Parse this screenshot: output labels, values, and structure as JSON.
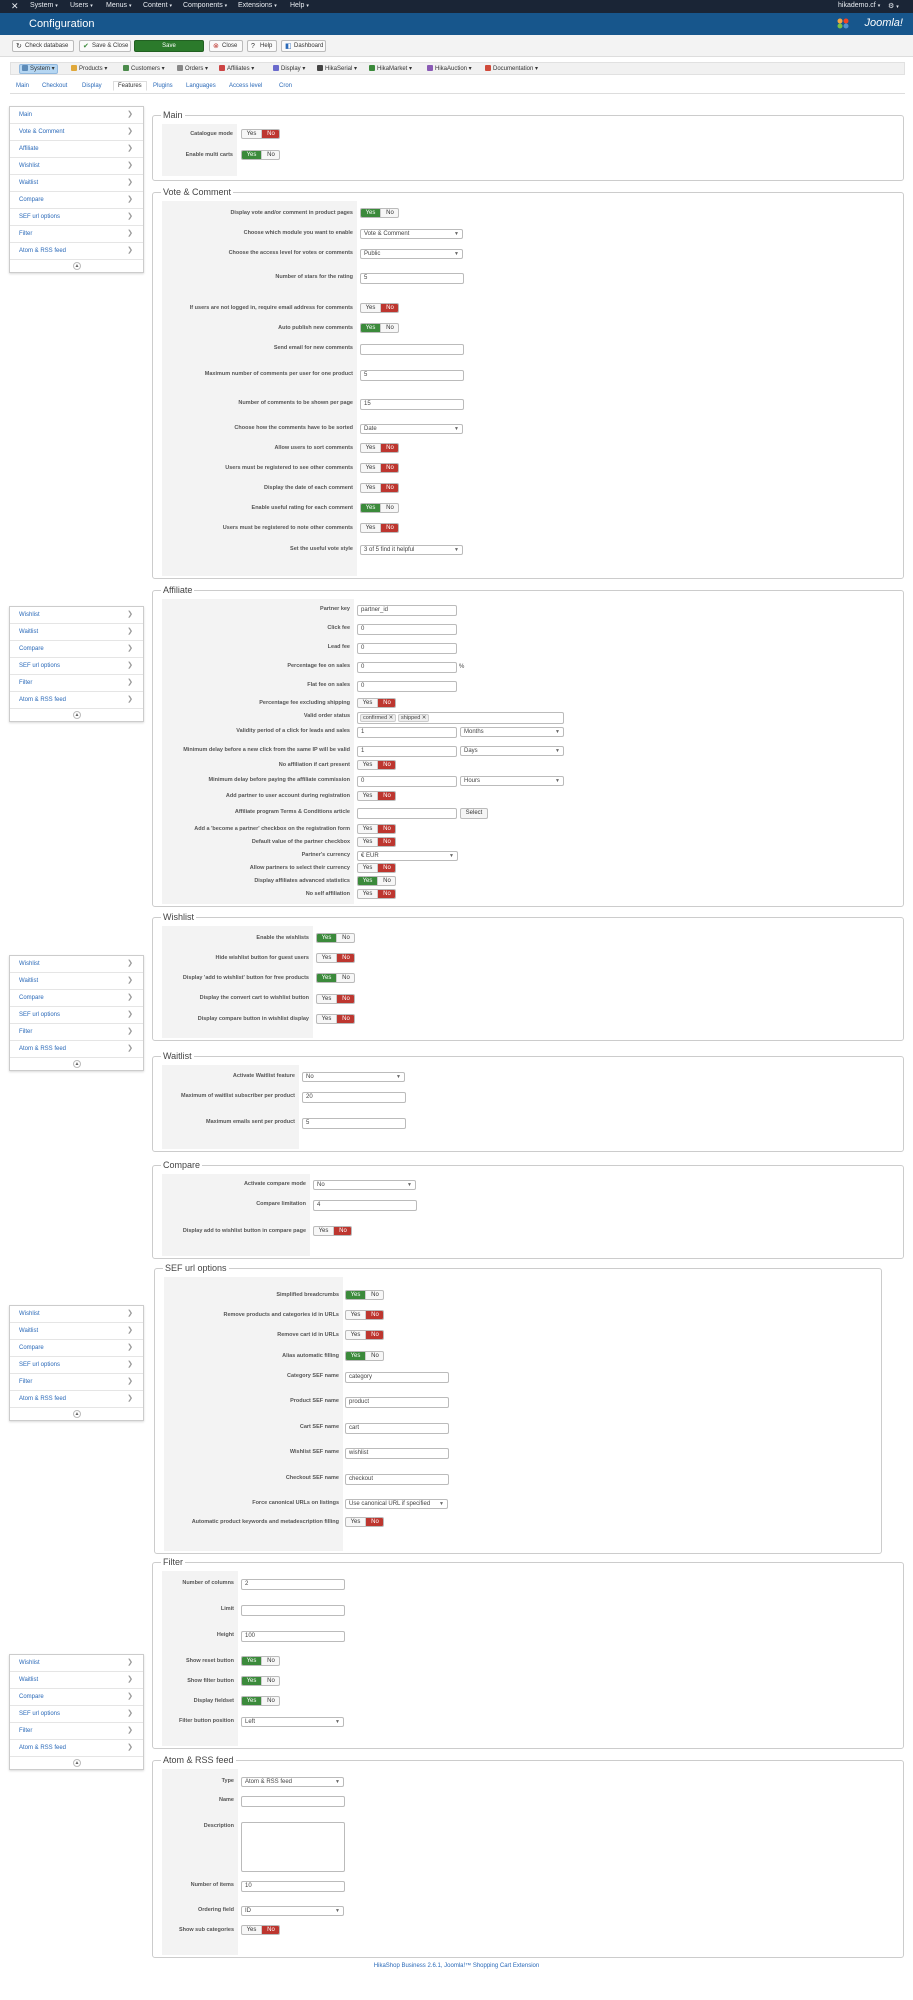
{
  "topbar": {
    "menus": [
      "System",
      "Users",
      "Menus",
      "Content",
      "Components",
      "Extensions",
      "Help"
    ],
    "user": "hikademo.cf"
  },
  "header": {
    "title": "Configuration",
    "brand": "Joomla!"
  },
  "toolbar": {
    "check_database": "Check database",
    "save_close": "Save & Close",
    "save": "Save",
    "close": "Close",
    "help": "Help",
    "dashboard": "Dashboard"
  },
  "hika_nav": [
    "System",
    "Products",
    "Customers",
    "Orders",
    "Affiliates",
    "Display",
    "HikaSerial",
    "HikaMarket",
    "HikaAuction",
    "Documentation"
  ],
  "tabs": [
    "Main",
    "Checkout",
    "Display",
    "Features",
    "Plugins",
    "Languages",
    "Access level",
    "Cron"
  ],
  "sidebar": {
    "items": [
      "Main",
      "Vote & Comment",
      "Affiliate",
      "Wishlist",
      "Waitlist",
      "Compare",
      "SEF url options",
      "Filter",
      "Atom & RSS feed"
    ]
  },
  "toggle": {
    "yes": "Yes",
    "no": "No"
  },
  "main": {
    "legend": "Main",
    "catalogue_mode": "Catalogue mode",
    "enable_multi_carts": "Enable multi carts"
  },
  "vote": {
    "legend": "Vote & Comment",
    "display_vote": "Display vote and/or comment in product pages",
    "module_label": "Choose which module you want to enable",
    "module_value": "Vote & Comment",
    "access_label": "Choose the access level for votes or comments",
    "access_value": "Public",
    "stars_label": "Number of stars for the rating",
    "stars_value": "5",
    "require_email": "If users are not logged in, require email address for comments",
    "auto_publish": "Auto publish new comments",
    "send_email": "Send email for new comments",
    "max_comments_label": "Maximum number of comments per user for one product",
    "max_comments_value": "5",
    "per_page_label": "Number of comments to be shown per page",
    "per_page_value": "15",
    "sort_label": "Choose how the comments have to be sorted",
    "sort_value": "Date",
    "allow_sort": "Allow users to sort comments",
    "registered_see": "Users must be registered to see other comments",
    "display_date": "Display the date of each comment",
    "useful_rating": "Enable useful rating for each comment",
    "registered_note": "Users must be registered to note other comments",
    "useful_style_label": "Set the useful vote style",
    "useful_style_value": "3 of 5 find it helpful"
  },
  "affiliate": {
    "legend": "Affiliate",
    "partner_key_label": "Partner key",
    "partner_key_value": "partner_id",
    "click_fee_label": "Click fee",
    "click_fee_value": "0",
    "lead_fee_label": "Lead fee",
    "lead_fee_value": "0",
    "pct_fee_label": "Percentage fee on sales",
    "pct_fee_value": "0",
    "pct_sign": "%",
    "flat_fee_label": "Flat fee on sales",
    "flat_fee_value": "0",
    "pct_excl_shipping": "Percentage fee excluding shipping",
    "valid_status_label": "Valid order status",
    "status_1": "confirmed",
    "status_2": "shipped",
    "validity_label": "Validity period of a click for leads and sales",
    "validity_value": "1",
    "validity_unit": "Months",
    "min_delay_label": "Minimum delay before a new click from the same IP will be valid",
    "min_delay_value": "1",
    "min_delay_unit": "Days",
    "no_aff_cart": "No affiliation if cart present",
    "min_pay_label": "Minimum delay before paying the affiliate commission",
    "min_pay_value": "0",
    "min_pay_unit": "Hours",
    "add_partner": "Add partner to user account during registration",
    "terms_label": "Affiliate program Terms & Conditions article",
    "select_btn": "Select",
    "become_partner": "Add a 'become a partner' checkbox on the registration form",
    "default_partner": "Default value of the partner checkbox",
    "currency_label": "Partner's currency",
    "currency_value": "€ EUR",
    "allow_currency": "Allow partners to select their currency",
    "advanced_stats": "Display affiliates advanced statistics",
    "no_self": "No self affiliation"
  },
  "wishlist": {
    "legend": "Wishlist",
    "enable": "Enable the wishlists",
    "hide_guest": "Hide wishlist button for guest users",
    "display_free": "Display 'add to wishlist' button for free products",
    "convert_cart": "Display the convert cart to wishlist button",
    "compare_btn": "Display compare button in wishlist display"
  },
  "waitlist": {
    "legend": "Waitlist",
    "activate_label": "Activate Waitlist feature",
    "activate_value": "No",
    "max_sub_label": "Maximum of waitlist subscriber per product",
    "max_sub_value": "20",
    "max_emails_label": "Maximum emails sent per product",
    "max_emails_value": "5"
  },
  "compare": {
    "legend": "Compare",
    "mode_label": "Activate compare mode",
    "mode_value": "No",
    "limit_label": "Compare limitation",
    "limit_value": "4",
    "wishlist_btn": "Display add to wishlist button in compare page"
  },
  "sef": {
    "legend": "SEF url options",
    "simplified": "Simplified breadcrumbs",
    "remove_ids": "Remove products and categories id in URLs",
    "remove_cart": "Remove cart id in URLs",
    "alias": "Alias automatic filling",
    "category_label": "Category SEF name",
    "category_value": "category",
    "product_label": "Product SEF name",
    "product_value": "product",
    "cart_label": "Cart SEF name",
    "cart_value": "cart",
    "wishlist_label": "Wishlist SEF name",
    "wishlist_value": "wishlist",
    "checkout_label": "Checkout SEF name",
    "checkout_value": "checkout",
    "canonical_label": "Force canonical URLs on listings",
    "canonical_value": "Use canonical URL if specified",
    "auto_keywords": "Automatic product keywords and metadescription filling"
  },
  "filter": {
    "legend": "Filter",
    "columns_label": "Number of columns",
    "columns_value": "2",
    "limit_label": "Limit",
    "limit_value": "",
    "height_label": "Height",
    "height_value": "100",
    "reset": "Show reset button",
    "filter_btn": "Show filter button",
    "fieldset": "Display fieldset",
    "position_label": "Filter button position",
    "position_value": "Left"
  },
  "rss": {
    "legend": "Atom & RSS feed",
    "type_label": "Type",
    "type_value": "Atom & RSS feed",
    "name_label": "Name",
    "desc_label": "Description",
    "items_label": "Number of items",
    "items_value": "10",
    "ordering_label": "Ordering field",
    "ordering_value": "ID",
    "sub_label": "Show sub categories"
  },
  "footer": "HikaShop Business 2.6.1, Joomla!™ Shopping Cart Extension"
}
